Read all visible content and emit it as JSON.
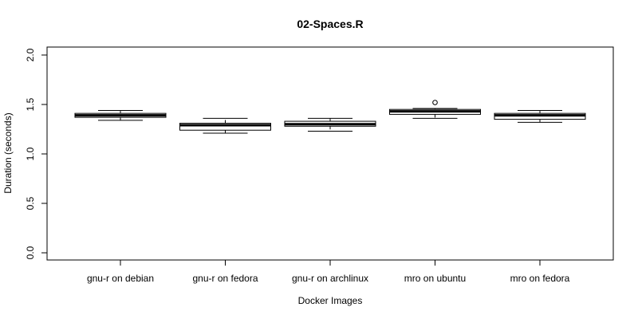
{
  "chart_data": {
    "type": "boxplot",
    "title": "02-Spaces.R",
    "xlabel": "Docker Images",
    "ylabel": "Duration (seconds)",
    "ylim": [
      0.0,
      2.0
    ],
    "yticks": [
      "0.0",
      "0.5",
      "1.0",
      "1.5",
      "2.0"
    ],
    "grid": false,
    "categories": [
      "gnu-r on debian",
      "gnu-r on fedora",
      "gnu-r on archlinux",
      "mro on ubuntu",
      "mro on fedora"
    ],
    "boxes": [
      {
        "whisker_low": 1.34,
        "q1": 1.37,
        "median": 1.39,
        "q3": 1.41,
        "whisker_high": 1.44,
        "outliers": []
      },
      {
        "whisker_low": 1.21,
        "q1": 1.24,
        "median": 1.29,
        "q3": 1.31,
        "whisker_high": 1.36,
        "outliers": []
      },
      {
        "whisker_low": 1.23,
        "q1": 1.28,
        "median": 1.3,
        "q3": 1.33,
        "whisker_high": 1.36,
        "outliers": []
      },
      {
        "whisker_low": 1.36,
        "q1": 1.4,
        "median": 1.43,
        "q3": 1.45,
        "whisker_high": 1.46,
        "outliers": [
          1.52
        ]
      },
      {
        "whisker_low": 1.32,
        "q1": 1.35,
        "median": 1.39,
        "q3": 1.41,
        "whisker_high": 1.44,
        "outliers": []
      }
    ]
  }
}
